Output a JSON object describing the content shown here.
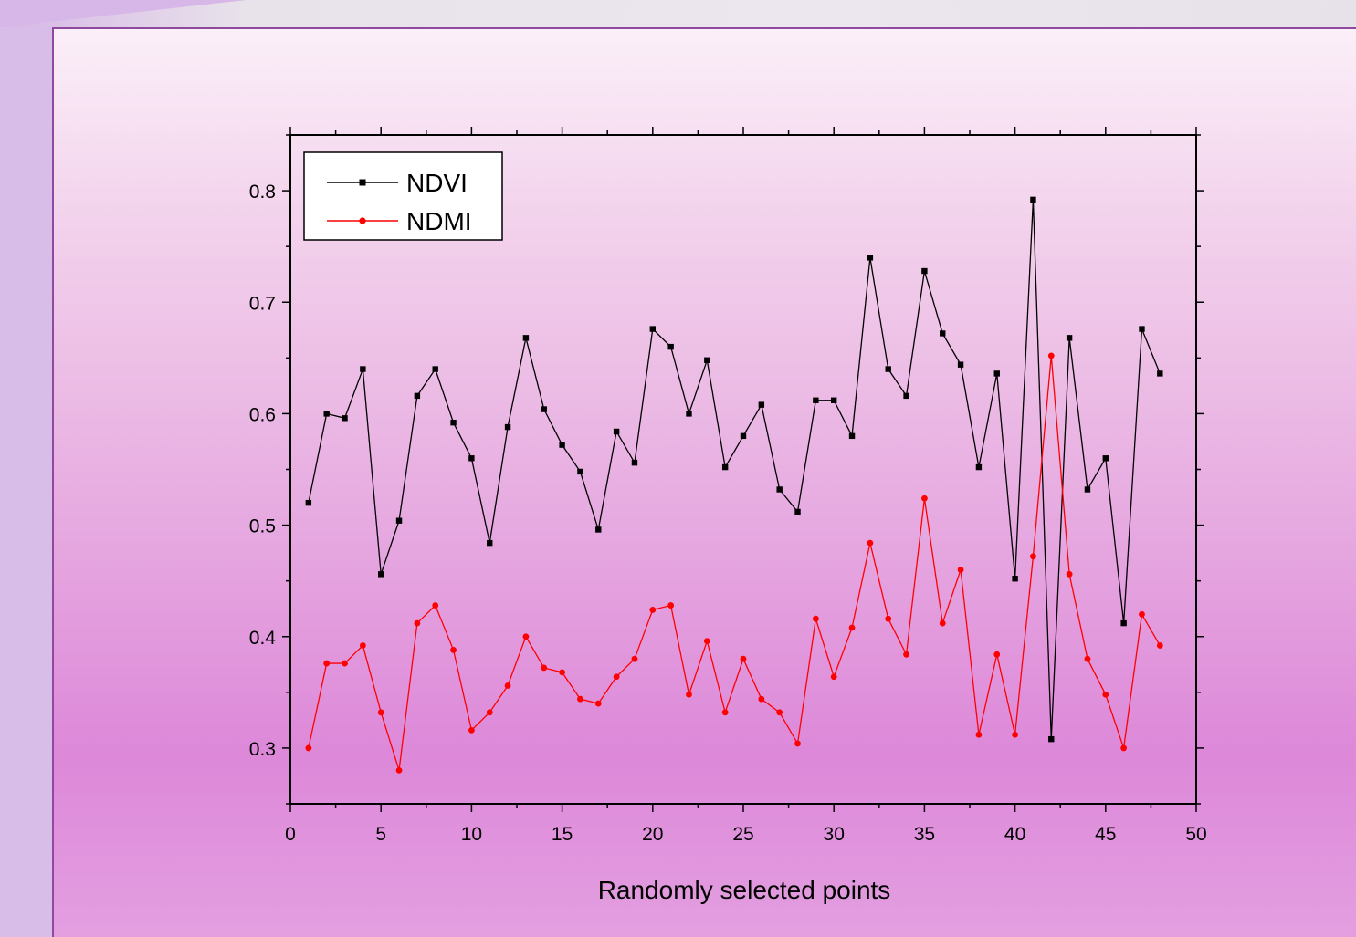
{
  "chart_data": {
    "type": "line",
    "xlabel": "Randomly selected points",
    "ylabel": "",
    "xlim": [
      0,
      50
    ],
    "ylim": [
      0.25,
      0.85
    ],
    "xticks": [
      "0",
      "5",
      "10",
      "15",
      "20",
      "25",
      "30",
      "35",
      "40",
      "45",
      "50"
    ],
    "yticks": [
      "0.3",
      "0.4",
      "0.5",
      "0.6",
      "0.7",
      "0.8"
    ],
    "legend_position": "top-left",
    "grid": false,
    "x": [
      1,
      2,
      3,
      4,
      5,
      6,
      7,
      8,
      9,
      10,
      11,
      12,
      13,
      14,
      15,
      16,
      17,
      18,
      19,
      20,
      21,
      22,
      23,
      24,
      25,
      26,
      27,
      28,
      29,
      30,
      31,
      32,
      33,
      34,
      35,
      36,
      37,
      38,
      39,
      40,
      41,
      42,
      43,
      44,
      45,
      46,
      47,
      48
    ],
    "series": [
      {
        "name": "NDVI",
        "color": "#000000",
        "marker": "square",
        "values": [
          0.52,
          0.6,
          0.596,
          0.64,
          0.456,
          0.504,
          0.616,
          0.64,
          0.592,
          0.56,
          0.484,
          0.588,
          0.668,
          0.604,
          0.572,
          0.548,
          0.496,
          0.584,
          0.556,
          0.676,
          0.66,
          0.6,
          0.648,
          0.552,
          0.58,
          0.608,
          0.532,
          0.512,
          0.612,
          0.612,
          0.58,
          0.74,
          0.64,
          0.616,
          0.728,
          0.672,
          0.644,
          0.552,
          0.636,
          0.452,
          0.792,
          0.308,
          0.668,
          0.532,
          0.56,
          0.412,
          0.676,
          0.636
        ]
      },
      {
        "name": "NDMI",
        "color": "#ff0000",
        "marker": "circle",
        "values": [
          0.3,
          0.376,
          0.376,
          0.392,
          0.332,
          0.28,
          0.412,
          0.428,
          0.388,
          0.316,
          0.332,
          0.356,
          0.4,
          0.372,
          0.368,
          0.344,
          0.34,
          0.364,
          0.38,
          0.424,
          0.428,
          0.348,
          0.396,
          0.332,
          0.38,
          0.344,
          0.332,
          0.304,
          0.416,
          0.364,
          0.408,
          0.484,
          0.416,
          0.384,
          0.524,
          0.412,
          0.46,
          0.312,
          0.384,
          0.312,
          0.472,
          0.652,
          0.456,
          0.38,
          0.348,
          0.3,
          0.42,
          0.392
        ]
      }
    ]
  }
}
